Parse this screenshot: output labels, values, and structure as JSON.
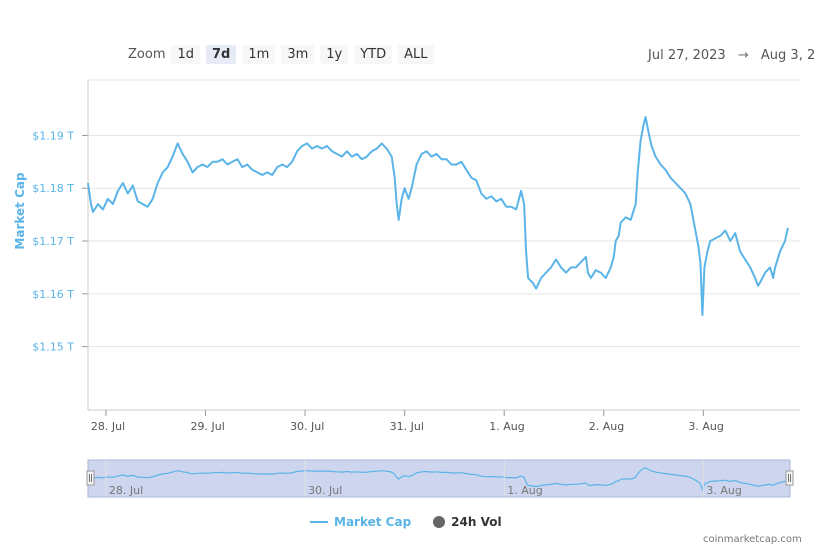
{
  "toolbar": {
    "zoom_label": "Zoom",
    "buttons": [
      "1d",
      "7d",
      "1m",
      "3m",
      "1y",
      "YTD",
      "ALL"
    ],
    "active": "7d"
  },
  "range": {
    "from": "Jul 27, 2023",
    "arrow": "→",
    "to": "Aug 3, 2"
  },
  "colors": {
    "series": "#5ab4e8",
    "vol_dot": "#666666"
  },
  "chart_data": {
    "type": "line",
    "ylabel": "Market Cap",
    "ytick_labels": [
      "$1.15 T",
      "$1.16 T",
      "$1.17 T",
      "$1.18 T",
      "$1.19 T"
    ],
    "yticks": [
      1.15,
      1.16,
      1.17,
      1.18,
      1.19
    ],
    "ylim": [
      1.138,
      1.2005
    ],
    "xlim": [
      0,
      7.05
    ],
    "xtick_labels": [
      "28. Jul",
      "29. Jul",
      "30. Jul",
      "31. Jul",
      "1. Aug",
      "2. Aug",
      "3. Aug"
    ],
    "xticks": [
      0.18,
      1.18,
      2.18,
      3.18,
      4.18,
      5.18,
      6.18
    ],
    "grid": true,
    "series": [
      {
        "name": "Market Cap",
        "points": [
          [
            0.0,
            1.181
          ],
          [
            0.03,
            1.177
          ],
          [
            0.05,
            1.1755
          ],
          [
            0.1,
            1.177
          ],
          [
            0.15,
            1.176
          ],
          [
            0.2,
            1.178
          ],
          [
            0.25,
            1.177
          ],
          [
            0.3,
            1.1795
          ],
          [
            0.35,
            1.181
          ],
          [
            0.4,
            1.179
          ],
          [
            0.45,
            1.1805
          ],
          [
            0.5,
            1.1775
          ],
          [
            0.55,
            1.177
          ],
          [
            0.6,
            1.1765
          ],
          [
            0.65,
            1.178
          ],
          [
            0.7,
            1.181
          ],
          [
            0.75,
            1.183
          ],
          [
            0.8,
            1.184
          ],
          [
            0.85,
            1.186
          ],
          [
            0.9,
            1.1885
          ],
          [
            0.95,
            1.1865
          ],
          [
            1.0,
            1.185
          ],
          [
            1.05,
            1.183
          ],
          [
            1.1,
            1.184
          ],
          [
            1.15,
            1.1845
          ],
          [
            1.2,
            1.184
          ],
          [
            1.25,
            1.185
          ],
          [
            1.3,
            1.185
          ],
          [
            1.35,
            1.1855
          ],
          [
            1.4,
            1.1845
          ],
          [
            1.45,
            1.185
          ],
          [
            1.5,
            1.1855
          ],
          [
            1.55,
            1.184
          ],
          [
            1.6,
            1.1845
          ],
          [
            1.65,
            1.1835
          ],
          [
            1.7,
            1.183
          ],
          [
            1.75,
            1.1825
          ],
          [
            1.8,
            1.183
          ],
          [
            1.85,
            1.1825
          ],
          [
            1.9,
            1.184
          ],
          [
            1.95,
            1.1845
          ],
          [
            2.0,
            1.184
          ],
          [
            2.05,
            1.185
          ],
          [
            2.1,
            1.187
          ],
          [
            2.15,
            1.188
          ],
          [
            2.2,
            1.1885
          ],
          [
            2.25,
            1.1875
          ],
          [
            2.3,
            1.188
          ],
          [
            2.35,
            1.1875
          ],
          [
            2.4,
            1.188
          ],
          [
            2.45,
            1.187
          ],
          [
            2.5,
            1.1865
          ],
          [
            2.55,
            1.186
          ],
          [
            2.6,
            1.187
          ],
          [
            2.65,
            1.186
          ],
          [
            2.7,
            1.1865
          ],
          [
            2.75,
            1.1855
          ],
          [
            2.8,
            1.186
          ],
          [
            2.85,
            1.187
          ],
          [
            2.9,
            1.1875
          ],
          [
            2.95,
            1.1885
          ],
          [
            3.0,
            1.1875
          ],
          [
            3.05,
            1.186
          ],
          [
            3.08,
            1.182
          ],
          [
            3.1,
            1.177
          ],
          [
            3.12,
            1.174
          ],
          [
            3.15,
            1.178
          ],
          [
            3.18,
            1.18
          ],
          [
            3.22,
            1.178
          ],
          [
            3.25,
            1.18
          ],
          [
            3.3,
            1.1845
          ],
          [
            3.35,
            1.1865
          ],
          [
            3.4,
            1.187
          ],
          [
            3.45,
            1.186
          ],
          [
            3.5,
            1.1865
          ],
          [
            3.55,
            1.1855
          ],
          [
            3.6,
            1.1855
          ],
          [
            3.65,
            1.1845
          ],
          [
            3.7,
            1.1845
          ],
          [
            3.75,
            1.185
          ],
          [
            3.8,
            1.1835
          ],
          [
            3.85,
            1.182
          ],
          [
            3.9,
            1.1815
          ],
          [
            3.95,
            1.179
          ],
          [
            4.0,
            1.178
          ],
          [
            4.05,
            1.1785
          ],
          [
            4.1,
            1.1775
          ],
          [
            4.15,
            1.178
          ],
          [
            4.2,
            1.1765
          ],
          [
            4.25,
            1.1765
          ],
          [
            4.3,
            1.176
          ],
          [
            4.35,
            1.1795
          ],
          [
            4.38,
            1.177
          ],
          [
            4.4,
            1.168
          ],
          [
            4.42,
            1.163
          ],
          [
            4.47,
            1.162
          ],
          [
            4.5,
            1.161
          ],
          [
            4.55,
            1.163
          ],
          [
            4.6,
            1.164
          ],
          [
            4.65,
            1.165
          ],
          [
            4.7,
            1.1665
          ],
          [
            4.75,
            1.165
          ],
          [
            4.8,
            1.164
          ],
          [
            4.85,
            1.165
          ],
          [
            4.9,
            1.165
          ],
          [
            4.95,
            1.166
          ],
          [
            5.0,
            1.167
          ],
          [
            5.02,
            1.164
          ],
          [
            5.05,
            1.163
          ],
          [
            5.1,
            1.1645
          ],
          [
            5.15,
            1.164
          ],
          [
            5.2,
            1.163
          ],
          [
            5.25,
            1.165
          ],
          [
            5.28,
            1.167
          ],
          [
            5.3,
            1.17
          ],
          [
            5.33,
            1.171
          ],
          [
            5.35,
            1.1735
          ],
          [
            5.4,
            1.1745
          ],
          [
            5.45,
            1.174
          ],
          [
            5.5,
            1.177
          ],
          [
            5.52,
            1.183
          ],
          [
            5.55,
            1.189
          ],
          [
            5.58,
            1.192
          ],
          [
            5.6,
            1.1935
          ],
          [
            5.63,
            1.1905
          ],
          [
            5.66,
            1.188
          ],
          [
            5.7,
            1.186
          ],
          [
            5.75,
            1.1845
          ],
          [
            5.8,
            1.1835
          ],
          [
            5.85,
            1.182
          ],
          [
            5.9,
            1.181
          ],
          [
            5.95,
            1.18
          ],
          [
            6.0,
            1.179
          ],
          [
            6.05,
            1.177
          ],
          [
            6.08,
            1.174
          ],
          [
            6.1,
            1.172
          ],
          [
            6.13,
            1.169
          ],
          [
            6.15,
            1.166
          ],
          [
            6.17,
            1.156
          ],
          [
            6.19,
            1.165
          ],
          [
            6.22,
            1.168
          ],
          [
            6.25,
            1.17
          ],
          [
            6.3,
            1.1705
          ],
          [
            6.35,
            1.171
          ],
          [
            6.4,
            1.172
          ],
          [
            6.45,
            1.17
          ],
          [
            6.5,
            1.1715
          ],
          [
            6.55,
            1.168
          ],
          [
            6.6,
            1.1665
          ],
          [
            6.65,
            1.165
          ],
          [
            6.7,
            1.163
          ],
          [
            6.73,
            1.1615
          ],
          [
            6.76,
            1.1625
          ],
          [
            6.8,
            1.164
          ],
          [
            6.85,
            1.165
          ],
          [
            6.88,
            1.163
          ],
          [
            6.9,
            1.165
          ],
          [
            6.95,
            1.168
          ],
          [
            7.0,
            1.17
          ],
          [
            7.03,
            1.1725
          ]
        ]
      }
    ],
    "navigator_xtick_labels": [
      "28. Jul",
      "30. Jul",
      "1. Aug",
      "3. Aug"
    ],
    "navigator_xticks": [
      0.18,
      2.18,
      4.18,
      6.18
    ],
    "legend": [
      {
        "name": "Market Cap",
        "marker": "line"
      },
      {
        "name": "24h Vol",
        "marker": "dot"
      }
    ],
    "legend_position": "bottom-center"
  },
  "credit": "coinmarketcap.com"
}
